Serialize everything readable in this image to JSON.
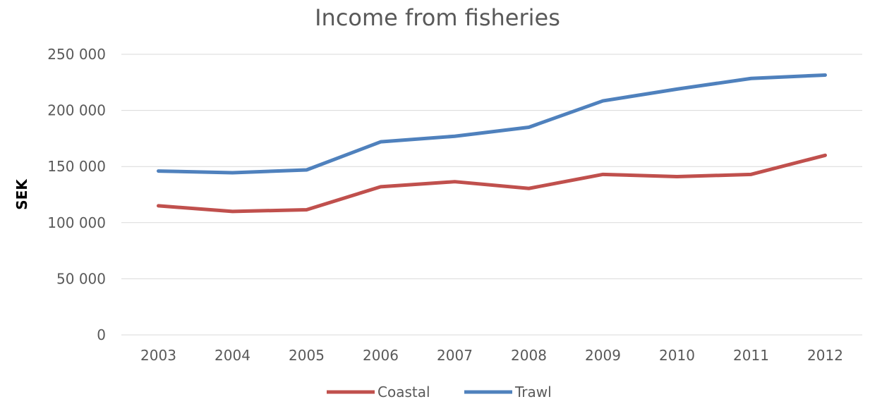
{
  "chart_data": {
    "type": "line",
    "title": "Income from fisheries",
    "xlabel": "",
    "ylabel": "SEK",
    "categories": [
      "2003",
      "2004",
      "2005",
      "2006",
      "2007",
      "2008",
      "2009",
      "2010",
      "2011",
      "2012"
    ],
    "ylim": [
      0,
      250000
    ],
    "yticks": [
      0,
      50000,
      100000,
      150000,
      200000,
      250000
    ],
    "ytick_labels": [
      "0",
      "50 000",
      "100 000",
      "150 000",
      "200 000",
      "250 000"
    ],
    "grid": true,
    "legend_position": "bottom",
    "series": [
      {
        "name": "Coastal",
        "color": "#c0504d",
        "values": [
          115000,
          110000,
          111500,
          132000,
          136500,
          130500,
          143000,
          141000,
          143000,
          160000
        ]
      },
      {
        "name": "Trawl",
        "color": "#4f81bd",
        "values": [
          146000,
          144500,
          147000,
          172000,
          177000,
          185000,
          208500,
          219000,
          228500,
          231500
        ]
      }
    ]
  }
}
